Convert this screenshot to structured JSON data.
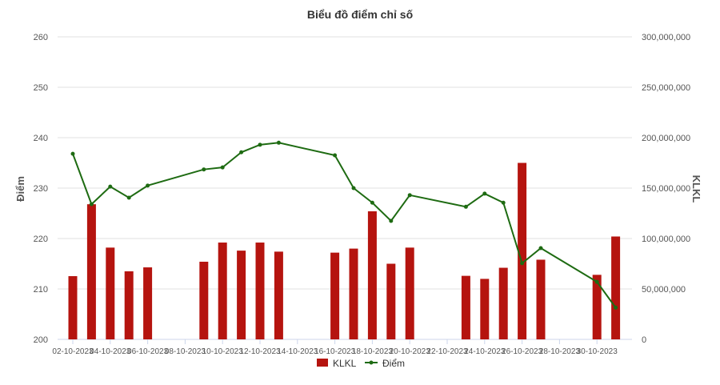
{
  "chart_data": {
    "type": "bar+line",
    "title": "Biểu đồ điểm chỉ số",
    "ylabel_left": "Điểm",
    "ylabel_right": "KLKL",
    "ylim_left": [
      200,
      260
    ],
    "yticks_left": [
      "200",
      "210",
      "220",
      "230",
      "240",
      "250",
      "260"
    ],
    "ylim_right": [
      0,
      300000000
    ],
    "yticks_right": [
      "0",
      "50,000,000",
      "100,000,000",
      "150,000,000",
      "200,000,000",
      "250,000,000",
      "300,000,000"
    ],
    "xticks": [
      "02-10-2023",
      "04-10-2023",
      "06-10-2023",
      "08-10-2023",
      "10-10-2023",
      "12-10-2023",
      "14-10-2023",
      "16-10-2023",
      "18-10-2023",
      "20-10-2023",
      "22-10-2023",
      "24-10-2023",
      "26-10-2023",
      "28-10-2023",
      "30-10-2023"
    ],
    "grid": true,
    "legend_position": "bottom",
    "colors": {
      "bar": "#b5140f",
      "line": "#1e6b12"
    },
    "x": [
      "02-10-2023",
      "03-10-2023",
      "04-10-2023",
      "05-10-2023",
      "06-10-2023",
      "09-10-2023",
      "10-10-2023",
      "11-10-2023",
      "12-10-2023",
      "13-10-2023",
      "16-10-2023",
      "17-10-2023",
      "18-10-2023",
      "19-10-2023",
      "20-10-2023",
      "23-10-2023",
      "24-10-2023",
      "25-10-2023",
      "26-10-2023",
      "27-10-2023",
      "30-10-2023",
      "31-10-2023"
    ],
    "series": [
      {
        "name": "KLKL",
        "type": "bar",
        "axis": "right",
        "values": [
          62700000,
          134000000,
          91000000,
          67500000,
          71400000,
          77000000,
          96000000,
          88000000,
          96000000,
          87000000,
          86000000,
          90000000,
          127000000,
          75000000,
          91000000,
          63000000,
          60000000,
          71000000,
          175000000,
          79000000,
          64000000,
          102000000
        ]
      },
      {
        "name": "Điểm",
        "type": "line",
        "axis": "left",
        "values": [
          236.8,
          226.8,
          230.3,
          228.1,
          230.5,
          233.7,
          234.1,
          237.1,
          238.6,
          239.0,
          236.5,
          230.0,
          227.1,
          223.5,
          228.6,
          226.3,
          228.9,
          227.1,
          215.1,
          218.1,
          211.4,
          206.3
        ]
      }
    ]
  }
}
